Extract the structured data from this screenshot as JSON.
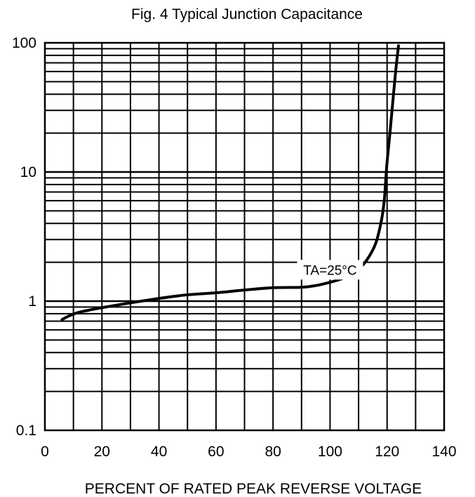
{
  "chart_data": {
    "type": "line",
    "title": "Fig. 4   Typical Junction Capacitance",
    "xlabel": "PERCENT OF RATED PEAK REVERSE VOLTAGE",
    "ylabel": "",
    "x_scale": "linear",
    "y_scale": "log",
    "xlim": [
      0,
      140
    ],
    "ylim": [
      0.1,
      100
    ],
    "x_ticks": [
      "0",
      "20",
      "40",
      "60",
      "80",
      "100",
      "120",
      "140"
    ],
    "y_ticks": [
      "0.1",
      "1",
      "10",
      "100"
    ],
    "grid": true,
    "series": [
      {
        "x": [
          6,
          8,
          12,
          20,
          30,
          40,
          50,
          60,
          70,
          80,
          90,
          95,
          100,
          105,
          110,
          113,
          116,
          118,
          119,
          119.5,
          120,
          121,
          122,
          123,
          124
        ],
        "y": [
          0.72,
          0.76,
          0.82,
          0.89,
          0.97,
          1.05,
          1.12,
          1.16,
          1.22,
          1.27,
          1.28,
          1.32,
          1.4,
          1.52,
          1.78,
          2.1,
          2.8,
          4.2,
          6.0,
          8.5,
          12,
          20,
          35,
          60,
          95
        ]
      }
    ],
    "annotations": [
      {
        "text": "TA=25°C",
        "x": 100,
        "y": 1.75
      }
    ],
    "colors": {
      "line": "#000000",
      "grid": "#000000",
      "background": "#ffffff"
    }
  }
}
